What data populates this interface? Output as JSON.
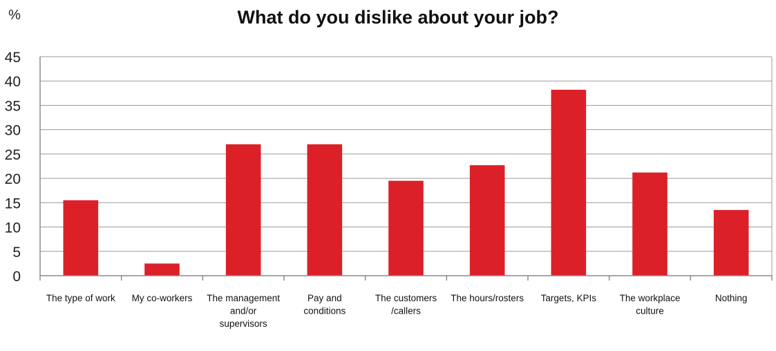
{
  "chart_data": {
    "type": "bar",
    "title": "What do you dislike about your job?",
    "ylabel": "%",
    "xlabel": "",
    "ylim": [
      0,
      45
    ],
    "yticks": [
      0,
      5,
      10,
      15,
      20,
      25,
      30,
      35,
      40,
      45
    ],
    "grid": true,
    "categories": [
      "The type of work",
      "My co-workers",
      "The management and/or supervisors",
      "Pay and conditions",
      "The customers /callers",
      "The hours/rosters",
      "Targets, KPIs",
      "The workplace culture",
      "Nothing"
    ],
    "category_lines": [
      [
        "The type of work"
      ],
      [
        "My co-workers"
      ],
      [
        "The management",
        "and/or",
        "supervisors"
      ],
      [
        "Pay and",
        "conditions"
      ],
      [
        "The customers",
        "/callers"
      ],
      [
        "The hours/rosters"
      ],
      [
        "Targets, KPIs"
      ],
      [
        "The workplace",
        "culture"
      ],
      [
        "Nothing"
      ]
    ],
    "values": [
      15.5,
      2.5,
      27,
      27,
      19.5,
      22.7,
      38.2,
      21.2,
      13.5
    ],
    "bar_color": "#dc2028"
  }
}
